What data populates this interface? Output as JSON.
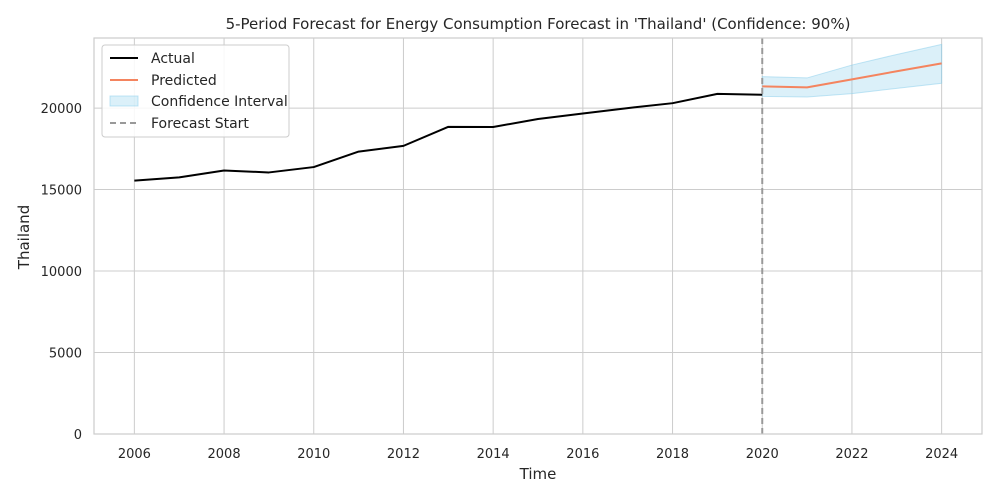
{
  "chart_data": {
    "type": "line",
    "title": "5-Period Forecast for Energy Consumption Forecast in 'Thailand' (Confidence: 90%)",
    "xlabel": "Time",
    "ylabel": "Thailand",
    "xlim": [
      2005.1,
      2024.9
    ],
    "ylim": [
      0,
      24300
    ],
    "xticks": [
      2006,
      2008,
      2010,
      2012,
      2014,
      2016,
      2018,
      2020,
      2022,
      2024
    ],
    "yticks": [
      0,
      5000,
      10000,
      15000,
      20000
    ],
    "grid": true,
    "legend_position": "top-left",
    "forecast_start": 2020,
    "series": [
      {
        "name": "Actual",
        "color": "#000000",
        "x": [
          2006,
          2007,
          2008,
          2009,
          2010,
          2011,
          2012,
          2013,
          2014,
          2015,
          2016,
          2017,
          2018,
          2019,
          2020
        ],
        "values": [
          15550,
          15750,
          16170,
          16050,
          16380,
          17330,
          17680,
          18850,
          18840,
          19330,
          19670,
          20000,
          20300,
          20870,
          20820
        ]
      },
      {
        "name": "Predicted",
        "color": "#f4845f",
        "x": [
          2020,
          2021,
          2022,
          2023,
          2024
        ],
        "values": [
          21330,
          21270,
          21760,
          22260,
          22740
        ]
      }
    ],
    "confidence_interval": {
      "name": "Confidence Interval",
      "color": "#87ceeb",
      "x": [
        2020,
        2021,
        2022,
        2023,
        2024
      ],
      "lower": [
        20720,
        20680,
        20890,
        21210,
        21520
      ],
      "upper": [
        21930,
        21850,
        22640,
        23290,
        23910
      ]
    },
    "legend": [
      "Actual",
      "Predicted",
      "Confidence Interval",
      "Forecast Start"
    ],
    "forecast_line_color": "#999999"
  }
}
